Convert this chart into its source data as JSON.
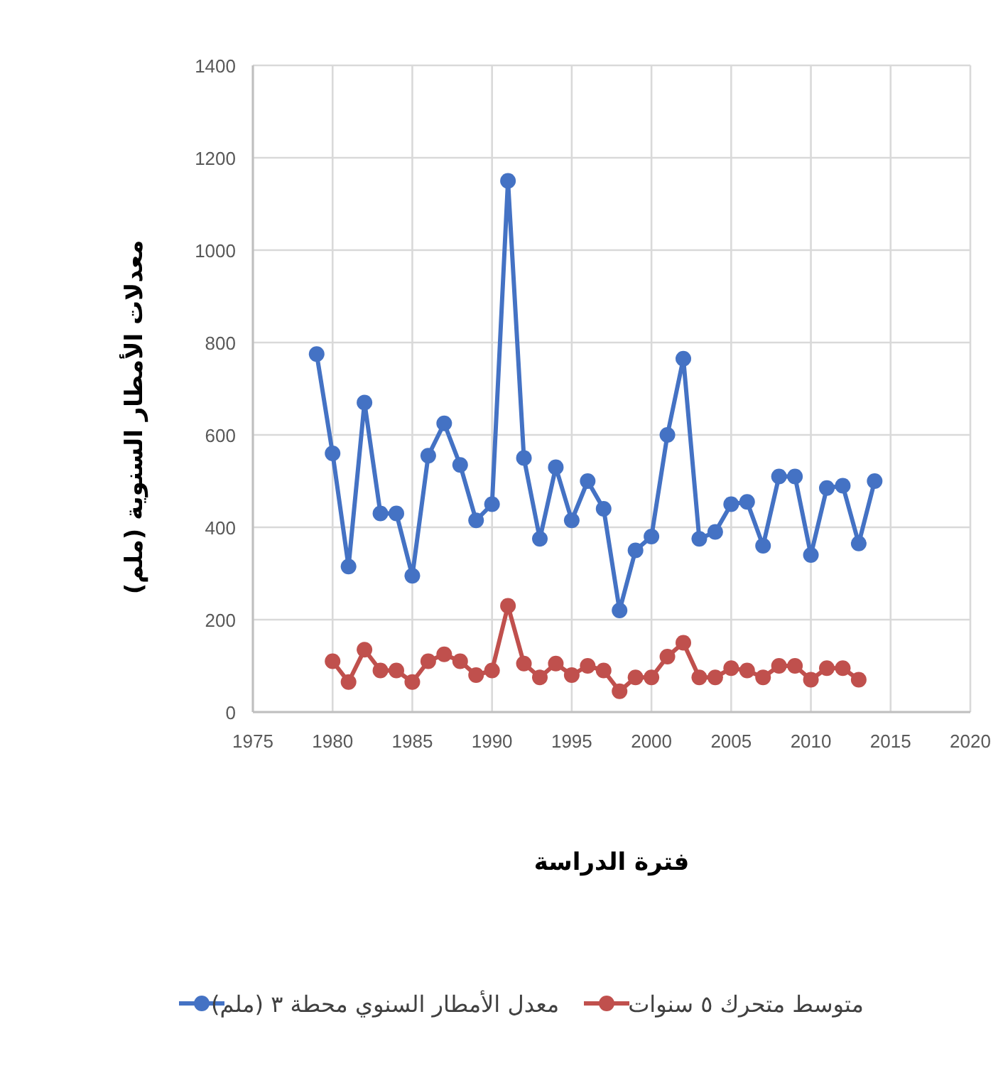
{
  "chart_data": {
    "type": "line",
    "xlabel": "فترة الدراسة",
    "ylabel": "معدلات الأمطار السنوية (ملم)",
    "xlim": [
      1975,
      2020
    ],
    "xticks": [
      1975,
      1980,
      1985,
      1990,
      1995,
      2000,
      2005,
      2010,
      2015,
      2020
    ],
    "ylim": [
      0,
      1400
    ],
    "yticks": [
      0,
      200,
      400,
      600,
      800,
      1000,
      1200,
      1400
    ],
    "grid": true,
    "legend": "bottom",
    "marker": "circle",
    "line_style": "solid",
    "series": [
      {
        "name": "معدل الأمطار السنوي محطة ٣ (ملم)",
        "color": "#4472c4",
        "x": [
          1979,
          1980,
          1981,
          1982,
          1983,
          1984,
          1985,
          1986,
          1987,
          1988,
          1989,
          1990,
          1991,
          1992,
          1993,
          1994,
          1995,
          1996,
          1997,
          1998,
          1999,
          2000,
          2001,
          2002,
          2003,
          2004,
          2005,
          2006,
          2007,
          2008,
          2009,
          2010,
          2011,
          2012,
          2013,
          2014
        ],
        "values": [
          775,
          560,
          315,
          670,
          430,
          430,
          295,
          555,
          625,
          535,
          415,
          450,
          1150,
          550,
          375,
          530,
          415,
          500,
          440,
          220,
          350,
          380,
          600,
          765,
          375,
          390,
          450,
          455,
          360,
          510,
          510,
          340,
          485,
          490,
          365,
          500
        ]
      },
      {
        "name": "متوسط متحرك ٥ سنوات",
        "color": "#c0504d",
        "x": [
          1980,
          1981,
          1982,
          1983,
          1984,
          1985,
          1986,
          1987,
          1988,
          1989,
          1990,
          1991,
          1992,
          1993,
          1994,
          1995,
          1996,
          1997,
          1998,
          1999,
          2000,
          2001,
          2002,
          2003,
          2004,
          2005,
          2006,
          2007,
          2008,
          2009,
          2010,
          2011,
          2012,
          2013
        ],
        "values": [
          110,
          65,
          135,
          90,
          90,
          65,
          110,
          125,
          110,
          80,
          90,
          230,
          105,
          75,
          105,
          80,
          100,
          90,
          45,
          75,
          75,
          120,
          150,
          75,
          75,
          95,
          90,
          75,
          100,
          100,
          70,
          95,
          95,
          70
        ]
      }
    ]
  }
}
